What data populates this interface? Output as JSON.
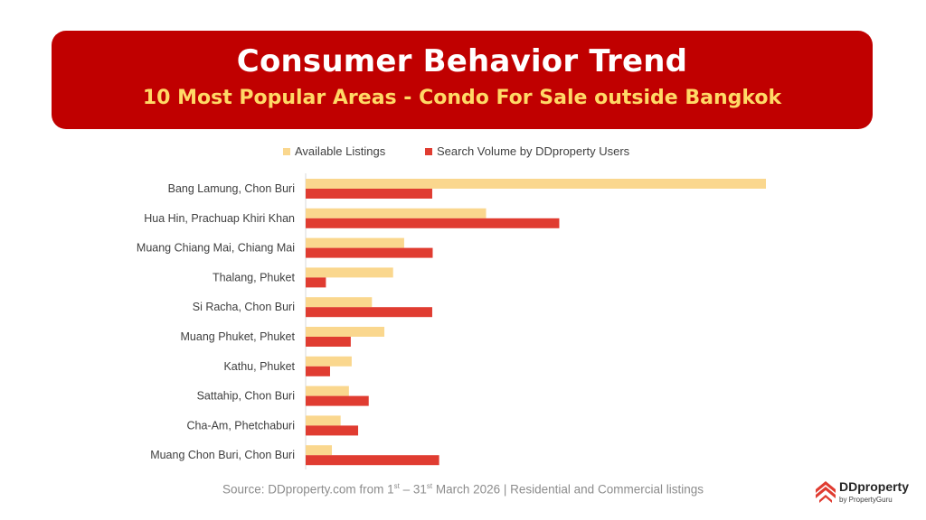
{
  "header": {
    "title": "Consumer Behavior Trend",
    "subtitle": "10 Most Popular Areas - Condo For Sale outside Bangkok"
  },
  "legend": {
    "available": "Available Listings",
    "search": "Search Volume by DDproperty Users"
  },
  "colors": {
    "banner": "#c00000",
    "subtitle": "#ffd966",
    "available": "#fad78e",
    "search": "#e03c31"
  },
  "chart_data": {
    "type": "bar",
    "orientation": "horizontal",
    "categories": [
      "Bang Lamung, Chon Buri",
      "Hua Hin, Prachuap Khiri Khan",
      "Muang Chiang Mai, Chiang Mai",
      "Thalang, Phuket",
      "Si Racha, Chon Buri",
      "Muang Phuket, Phuket",
      "Kathu, Phuket",
      "Sattahip, Chon Buri",
      "Cha-Am, Phetchaburi",
      "Muang Chon Buri, Chon Buri"
    ],
    "series": [
      {
        "name": "Available Listings",
        "values": [
          100,
          39.2,
          21.4,
          19.0,
          14.4,
          17.1,
          10.0,
          9.4,
          7.6,
          5.7
        ]
      },
      {
        "name": "Search Volume by DDproperty Users",
        "values": [
          27.5,
          55.1,
          27.6,
          4.4,
          27.5,
          9.8,
          5.3,
          13.7,
          11.4,
          29.0
        ]
      }
    ],
    "xlim": [
      0,
      100
    ],
    "axes_labels_shown": false,
    "grid": false,
    "legend_position": "top"
  },
  "source": {
    "prefix": "Source: DDproperty.com from 1",
    "sup1": "st",
    "middle": "  – 31",
    "sup2": "st",
    "suffix": " March  2026 | Residential and Commercial listings"
  },
  "logo": {
    "brand": "DDproperty",
    "tagline": "by PropertyGuru"
  }
}
